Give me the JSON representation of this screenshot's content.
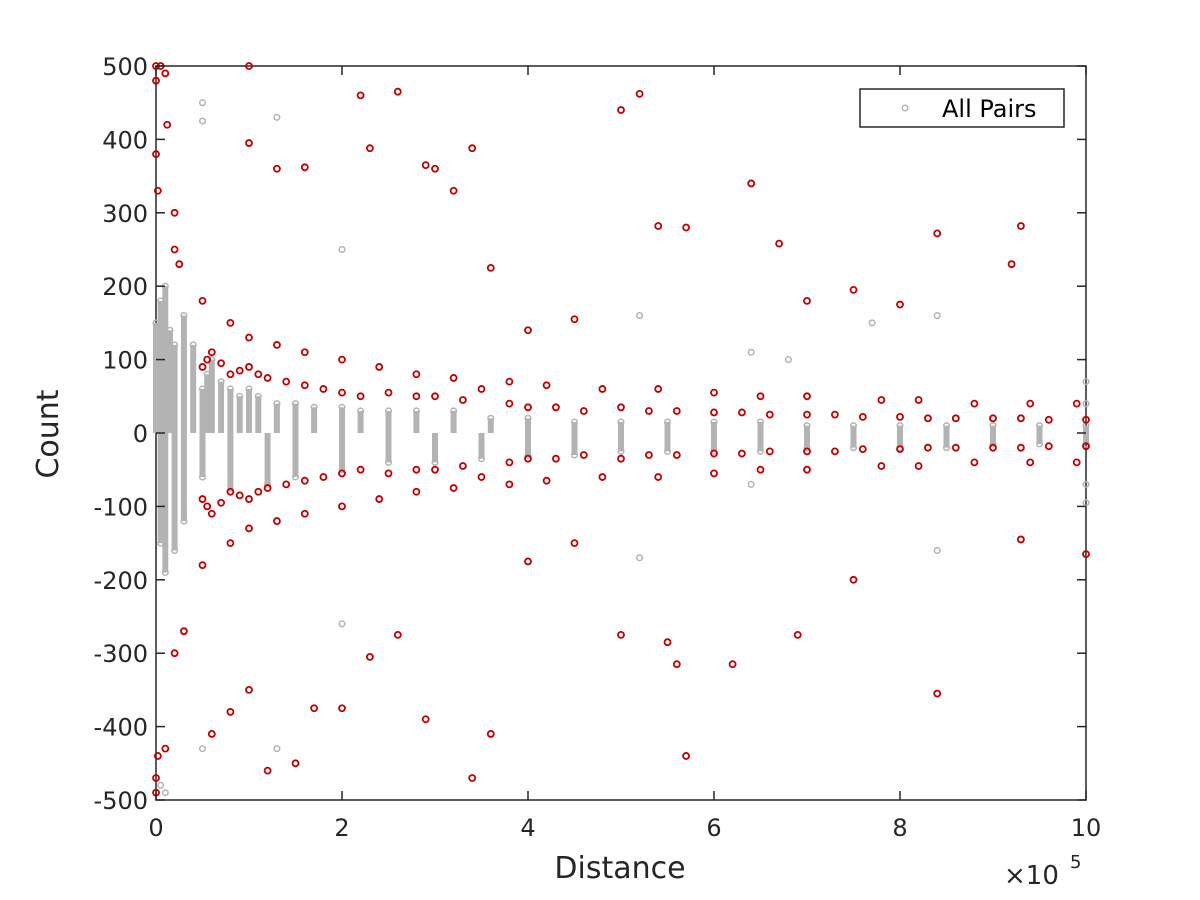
{
  "chart_data": {
    "type": "scatter",
    "title": "",
    "xlabel": "Distance",
    "ylabel": "Count",
    "x_exponent_label": "×10",
    "x_exponent_power": "5",
    "xlim": [
      0,
      10
    ],
    "ylim": [
      -500,
      500
    ],
    "x_ticks": [
      "0",
      "2",
      "4",
      "6",
      "8",
      "10"
    ],
    "y_ticks": [
      "500",
      "400",
      "300",
      "200",
      "100",
      "0",
      "-100",
      "-200",
      "-300",
      "-400",
      "-500"
    ],
    "x_tick_values": [
      0,
      2,
      4,
      6,
      8,
      10
    ],
    "y_tick_values": [
      500,
      400,
      300,
      200,
      100,
      0,
      -100,
      -200,
      -300,
      -400,
      -500
    ],
    "grid": false,
    "legend": {
      "position": "top-right",
      "entries": [
        "All Pairs"
      ]
    },
    "colors": {
      "all_pairs": "#b3b3b3",
      "highlight": "#c00000",
      "axes": "#262626"
    },
    "series": [
      {
        "name": "All Pairs",
        "color": "#b3b3b3",
        "x": [
          0.0,
          0.05,
          0.1,
          0.15,
          0.2,
          0.3,
          0.4,
          0.5,
          0.55,
          0.6,
          0.7,
          0.8,
          0.9,
          1.0,
          1.1,
          1.3,
          1.5,
          1.7,
          2.0,
          2.2,
          2.5,
          2.8,
          3.2,
          3.6,
          4.0,
          4.5,
          5.0,
          5.5,
          6.0,
          6.5,
          7.0,
          7.5,
          8.0,
          8.5,
          9.0,
          9.5,
          10.0,
          0.05,
          0.1,
          0.2,
          0.3,
          0.5,
          0.8,
          1.2,
          1.5,
          2.0,
          2.5,
          3.0,
          3.5,
          4.0,
          4.5,
          5.0,
          5.5,
          6.0,
          6.5,
          7.0,
          7.5,
          8.0,
          8.5,
          9.0,
          9.5,
          10.0,
          0.5,
          0.5,
          1.3,
          2.0,
          0.1,
          0.05,
          0.5,
          1.3,
          2.0,
          0.1,
          5.2,
          6.4,
          6.8,
          7.7,
          8.4,
          10.0,
          10.0,
          5.2,
          6.4,
          8.4,
          10.0,
          10.0
        ],
        "y": [
          150,
          180,
          200,
          140,
          120,
          160,
          120,
          60,
          80,
          100,
          70,
          60,
          50,
          60,
          50,
          40,
          40,
          35,
          35,
          30,
          30,
          30,
          30,
          20,
          20,
          15,
          15,
          15,
          15,
          15,
          10,
          10,
          10,
          10,
          10,
          10,
          10,
          -150,
          -190,
          -160,
          -120,
          -60,
          -80,
          -70,
          -60,
          -50,
          -40,
          -40,
          -35,
          -30,
          -30,
          -25,
          -25,
          -25,
          -25,
          -20,
          -20,
          -20,
          -20,
          -15,
          -15,
          -15,
          450,
          425,
          430,
          250,
          490,
          -480,
          -430,
          -430,
          -260,
          -490,
          160,
          110,
          100,
          150,
          160,
          70,
          40,
          -170,
          -70,
          -160,
          -70,
          -95
        ]
      },
      {
        "name": "",
        "color": "#c00000",
        "x": [
          0.0,
          0.0,
          0.0,
          0.02,
          0.05,
          0.1,
          0.12,
          0.2,
          0.2,
          0.25,
          1.0,
          1.0,
          1.3,
          1.6,
          2.2,
          2.3,
          2.6,
          2.9,
          3.0,
          3.2,
          3.4,
          3.6,
          4.0,
          4.5,
          5.0,
          5.2,
          5.4,
          5.7,
          6.4,
          6.7,
          7.0,
          7.5,
          8.0,
          8.4,
          9.3,
          9.2,
          0.0,
          0.0,
          0.02,
          0.1,
          0.2,
          0.3,
          0.6,
          0.8,
          1.0,
          1.2,
          1.5,
          1.7,
          2.0,
          2.3,
          2.6,
          2.9,
          3.4,
          3.6,
          4.0,
          4.5,
          5.0,
          5.5,
          5.6,
          5.7,
          6.2,
          6.9,
          7.5,
          8.4,
          9.3,
          10.0,
          0.5,
          0.55,
          0.6,
          0.7,
          0.8,
          0.9,
          1.0,
          1.1,
          1.2,
          1.4,
          1.6,
          1.8,
          2.0,
          2.2,
          2.5,
          2.8,
          3.0,
          3.3,
          3.5,
          3.8,
          4.0,
          4.3,
          4.6,
          5.0,
          5.3,
          5.6,
          6.0,
          6.3,
          6.6,
          7.0,
          7.3,
          7.6,
          8.0,
          8.3,
          8.6,
          9.0,
          9.3,
          9.6,
          10.0,
          0.5,
          0.55,
          0.6,
          0.7,
          0.8,
          0.9,
          1.0,
          1.1,
          1.2,
          1.4,
          1.6,
          1.8,
          2.0,
          2.2,
          2.5,
          2.8,
          3.0,
          3.3,
          3.5,
          3.8,
          4.0,
          4.3,
          4.6,
          5.0,
          5.3,
          5.6,
          6.0,
          6.3,
          6.6,
          7.0,
          7.3,
          7.6,
          8.0,
          8.3,
          8.6,
          9.0,
          9.3,
          9.6,
          10.0,
          0.5,
          0.8,
          1.0,
          1.3,
          1.6,
          2.0,
          2.4,
          2.8,
          3.2,
          3.8,
          4.2,
          4.8,
          5.4,
          6.0,
          6.5,
          7.0,
          7.8,
          8.2,
          8.8,
          9.4,
          9.9,
          0.5,
          0.8,
          1.0,
          1.3,
          1.6,
          2.0,
          2.4,
          2.8,
          3.2,
          3.8,
          4.2,
          4.8,
          5.4,
          6.0,
          6.5,
          7.0,
          7.8,
          8.2,
          8.8,
          9.4,
          9.9
        ],
        "y": [
          500,
          480,
          380,
          330,
          500,
          490,
          420,
          300,
          250,
          230,
          500,
          395,
          360,
          362,
          460,
          388,
          465,
          365,
          360,
          330,
          388,
          225,
          140,
          155,
          440,
          462,
          282,
          280,
          340,
          258,
          180,
          195,
          175,
          272,
          282,
          230,
          -490,
          -470,
          -440,
          -430,
          -300,
          -270,
          -410,
          -380,
          -350,
          -460,
          -450,
          -375,
          -375,
          -305,
          -275,
          -390,
          -470,
          -410,
          -175,
          -150,
          -275,
          -285,
          -315,
          -440,
          -315,
          -275,
          -200,
          -355,
          -145,
          -165,
          90,
          100,
          110,
          95,
          80,
          85,
          90,
          80,
          75,
          70,
          65,
          60,
          55,
          50,
          55,
          50,
          50,
          45,
          60,
          40,
          35,
          35,
          30,
          35,
          30,
          30,
          28,
          28,
          25,
          25,
          25,
          22,
          22,
          20,
          20,
          20,
          20,
          18,
          18,
          -90,
          -100,
          -110,
          -95,
          -80,
          -85,
          -90,
          -80,
          -75,
          -70,
          -65,
          -60,
          -55,
          -50,
          -55,
          -50,
          -50,
          -45,
          -60,
          -40,
          -35,
          -35,
          -30,
          -35,
          -30,
          -30,
          -28,
          -28,
          -25,
          -25,
          -25,
          -22,
          -22,
          -20,
          -20,
          -20,
          -20,
          -18,
          -18,
          180,
          150,
          130,
          120,
          110,
          100,
          90,
          80,
          75,
          70,
          65,
          60,
          60,
          55,
          50,
          50,
          45,
          45,
          40,
          40,
          40,
          -180,
          -150,
          -130,
          -120,
          -110,
          -100,
          -90,
          -80,
          -75,
          -70,
          -65,
          -60,
          -60,
          -55,
          -50,
          -50,
          -45,
          -45,
          -40,
          -40,
          -40
        ]
      }
    ]
  }
}
